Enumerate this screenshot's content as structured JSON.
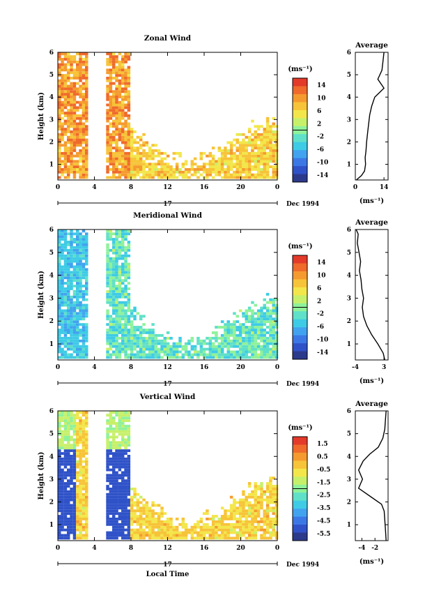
{
  "chart_data": [
    {
      "type": "heatmap",
      "title": "Zonal Wind",
      "ylabel": "Height (km)",
      "xticks": [
        "0",
        "4",
        "8",
        "12",
        "16",
        "20",
        "0"
      ],
      "yticks": [
        "1",
        "2",
        "3",
        "4",
        "5",
        "6"
      ],
      "date_day": "17",
      "date_label": "Dec 1994",
      "xlim": [
        0,
        24
      ],
      "ylim": [
        0.3,
        6.0
      ],
      "colorbar": {
        "unit": "(ms⁻¹)",
        "ticks": [
          "14",
          "10",
          "6",
          "2",
          "-2",
          "-6",
          "-10",
          "-14"
        ]
      },
      "average": {
        "title": "Average",
        "xlabel": "(ms⁻¹)",
        "xticks": [
          "0",
          "14"
        ],
        "xlim": [
          0,
          16
        ],
        "yticks": [
          "1",
          "2",
          "3",
          "4",
          "5",
          "6"
        ],
        "height": [
          0.3,
          0.5,
          0.7,
          1.0,
          1.3,
          1.6,
          2.0,
          2.4,
          2.8,
          3.2,
          3.6,
          4.0,
          4.4,
          4.8,
          5.2,
          5.6,
          6.0
        ],
        "value": [
          0.5,
          3.0,
          4.5,
          5.0,
          4.8,
          5.2,
          5.5,
          6.0,
          6.5,
          7.0,
          8.0,
          9.5,
          14.0,
          11.0,
          13.0,
          13.5,
          14.0
        ]
      }
    },
    {
      "type": "heatmap",
      "title": "Meridional Wind",
      "ylabel": "Height (km)",
      "xticks": [
        "0",
        "4",
        "8",
        "12",
        "16",
        "20",
        "0"
      ],
      "yticks": [
        "1",
        "2",
        "3",
        "4",
        "5",
        "6"
      ],
      "date_day": "17",
      "date_label": "Dec 1994",
      "xlim": [
        0,
        24
      ],
      "ylim": [
        0.3,
        6.0
      ],
      "colorbar": {
        "unit": "(ms⁻¹)",
        "ticks": [
          "14",
          "10",
          "6",
          "2",
          "-2",
          "-6",
          "-10",
          "-14"
        ]
      },
      "average": {
        "title": "Average",
        "xlabel": "(ms⁻¹)",
        "xticks": [
          "-4",
          "3"
        ],
        "xlim": [
          -4,
          4
        ],
        "yticks": [
          "1",
          "2",
          "3",
          "4",
          "5",
          "6"
        ],
        "height": [
          0.3,
          0.6,
          1.0,
          1.4,
          1.8,
          2.2,
          2.6,
          3.0,
          3.4,
          3.8,
          4.2,
          4.6,
          5.0,
          5.4,
          5.8,
          6.0
        ],
        "value": [
          3.2,
          2.8,
          1.5,
          0.0,
          -1.2,
          -2.0,
          -2.3,
          -2.0,
          -2.4,
          -2.6,
          -3.0,
          -2.7,
          -3.1,
          -3.5,
          -3.3,
          -3.8
        ]
      }
    },
    {
      "type": "heatmap",
      "title": "Vertical Wind",
      "ylabel": "Height (km)",
      "xlabel": "Local Time",
      "xticks": [
        "0",
        "4",
        "8",
        "12",
        "16",
        "20",
        "0"
      ],
      "yticks": [
        "1",
        "2",
        "3",
        "4",
        "5",
        "6"
      ],
      "date_day": "17",
      "date_label": "Dec 1994",
      "xlim": [
        0,
        24
      ],
      "ylim": [
        0.3,
        6.0
      ],
      "colorbar": {
        "unit": "(ms⁻¹)",
        "ticks": [
          "1.5",
          "0.5",
          "-0.5",
          "-1.5",
          "-2.5",
          "-3.5",
          "-4.5",
          "-5.5"
        ]
      },
      "average": {
        "title": "Average",
        "xlabel": "(ms⁻¹)",
        "xticks": [
          "-4",
          "-2"
        ],
        "xlim": [
          -5,
          0
        ],
        "yticks": [
          "1",
          "2",
          "3",
          "4",
          "5",
          "6"
        ],
        "height": [
          0.3,
          0.8,
          1.2,
          1.6,
          1.9,
          2.2,
          2.6,
          3.0,
          3.4,
          3.8,
          4.1,
          4.4,
          4.8,
          5.2,
          5.6,
          6.0
        ],
        "value": [
          -0.3,
          -0.4,
          -0.5,
          -0.6,
          -1.0,
          -2.5,
          -4.5,
          -3.9,
          -4.5,
          -3.8,
          -2.8,
          -1.5,
          -0.8,
          -0.5,
          -0.4,
          -0.3
        ]
      }
    }
  ]
}
